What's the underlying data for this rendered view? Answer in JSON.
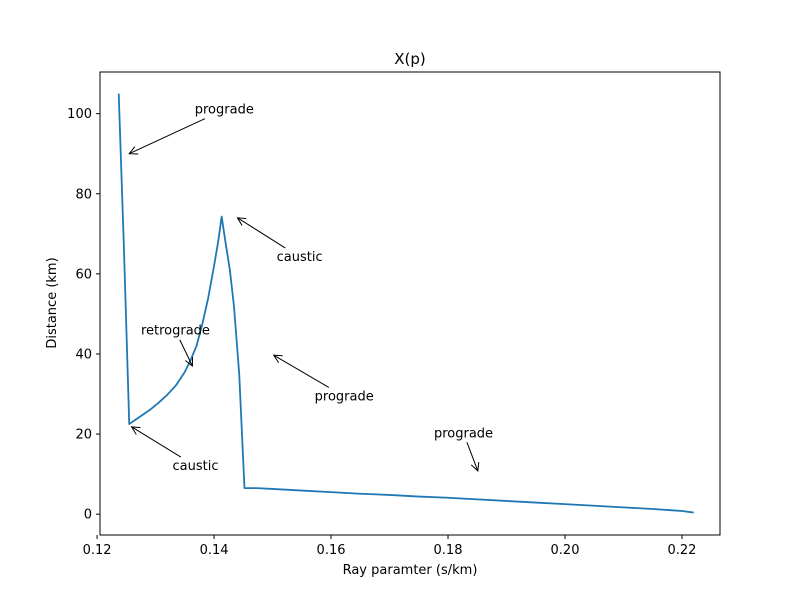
{
  "chart_data": {
    "type": "line",
    "title": "X(p)",
    "xlabel": "Ray paramter (s/km)",
    "ylabel": "Distance (km)",
    "xlim": [
      0.1205,
      0.2265
    ],
    "ylim": [
      -5.2,
      110.4
    ],
    "xticks": [
      0.12,
      0.14,
      0.16,
      0.18,
      0.2,
      0.22
    ],
    "xtick_labels": [
      "0.12",
      "0.14",
      "0.16",
      "0.18",
      "0.20",
      "0.22"
    ],
    "yticks": [
      0,
      20,
      40,
      60,
      80,
      100
    ],
    "ytick_labels": [
      "0",
      "20",
      "40",
      "60",
      "80",
      "100"
    ],
    "grid": false,
    "series": [
      {
        "color": "#1f77b4",
        "x": [
          0.1237,
          0.1246,
          0.1255,
          0.1265,
          0.1275,
          0.129,
          0.1305,
          0.132,
          0.1335,
          0.135,
          0.136,
          0.137,
          0.138,
          0.139,
          0.14,
          0.1407,
          0.1413,
          0.142,
          0.1427,
          0.1434,
          0.1443,
          0.1452,
          0.1461,
          0.1469,
          0.1473,
          0.15,
          0.155,
          0.16,
          0.165,
          0.17,
          0.175,
          0.18,
          0.185,
          0.19,
          0.195,
          0.2,
          0.205,
          0.21,
          0.215,
          0.218,
          0.22,
          0.222
        ],
        "y": [
          105.0,
          66.0,
          22.5,
          23.5,
          24.5,
          26.0,
          27.8,
          29.8,
          32.2,
          35.5,
          38.5,
          42.0,
          47.5,
          54.0,
          62.0,
          68.0,
          74.3,
          67.5,
          61.0,
          52.0,
          35.0,
          6.5,
          6.5,
          6.5,
          6.5,
          6.3,
          5.9,
          5.5,
          5.1,
          4.8,
          4.4,
          4.1,
          3.7,
          3.3,
          2.9,
          2.5,
          2.1,
          1.7,
          1.3,
          1.0,
          0.8,
          0.4
        ]
      }
    ],
    "annotations": [
      {
        "text": "prograde",
        "text_xy": [
          0.1367,
          101.0
        ],
        "arrow_xy": [
          0.1255,
          90.0
        ]
      },
      {
        "text": "caustic",
        "text_xy": [
          0.1507,
          64.2
        ],
        "arrow_xy": [
          0.144,
          74.0
        ]
      },
      {
        "text": "retrograde",
        "text_xy": [
          0.1275,
          45.8
        ],
        "arrow_xy": [
          0.1363,
          37.0
        ]
      },
      {
        "text": "prograde",
        "text_xy": [
          0.1572,
          29.4
        ],
        "arrow_xy": [
          0.1502,
          39.7
        ]
      },
      {
        "text": "caustic",
        "text_xy": [
          0.1329,
          12.0
        ],
        "arrow_xy": [
          0.1259,
          21.8
        ]
      },
      {
        "text": "prograde",
        "text_xy": [
          0.1776,
          20.2
        ],
        "arrow_xy": [
          0.1851,
          10.8
        ]
      }
    ]
  }
}
